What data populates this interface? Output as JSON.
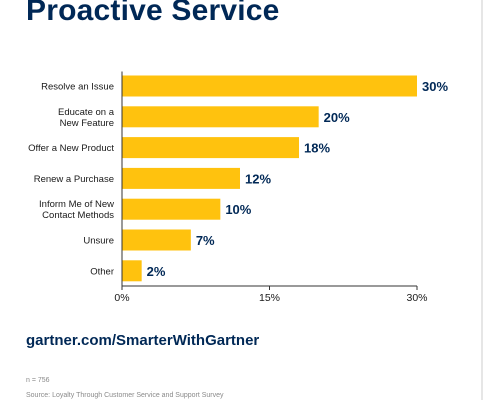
{
  "title": "Proactive Service",
  "footer": {
    "url": "gartner.com/SmarterWithGartner",
    "sample": "n = 756",
    "source": "Source: Loyalty Through Customer Service and Support Survey"
  },
  "colors": {
    "bar": "#FFC20E",
    "text_dark": "#002856",
    "label": "#1a1a1a",
    "axis": "#333333"
  },
  "chart_data": {
    "type": "bar",
    "orientation": "horizontal",
    "categories": [
      [
        "Resolve an Issue"
      ],
      [
        "Educate on a",
        "New Feature"
      ],
      [
        "Offer a New Product"
      ],
      [
        "Renew a Purchase"
      ],
      [
        "Inform Me of New",
        "Contact Methods"
      ],
      [
        "Unsure"
      ],
      [
        "Other"
      ]
    ],
    "values": [
      30,
      20,
      18,
      12,
      10,
      7,
      2
    ],
    "value_labels": [
      "30%",
      "20%",
      "18%",
      "12%",
      "10%",
      "7%",
      "2%"
    ],
    "xlim": [
      0,
      30
    ],
    "ticks": [
      0,
      15,
      30
    ],
    "tick_labels": [
      "0%",
      "15%",
      "30%"
    ],
    "grid": false,
    "legend": "none"
  }
}
